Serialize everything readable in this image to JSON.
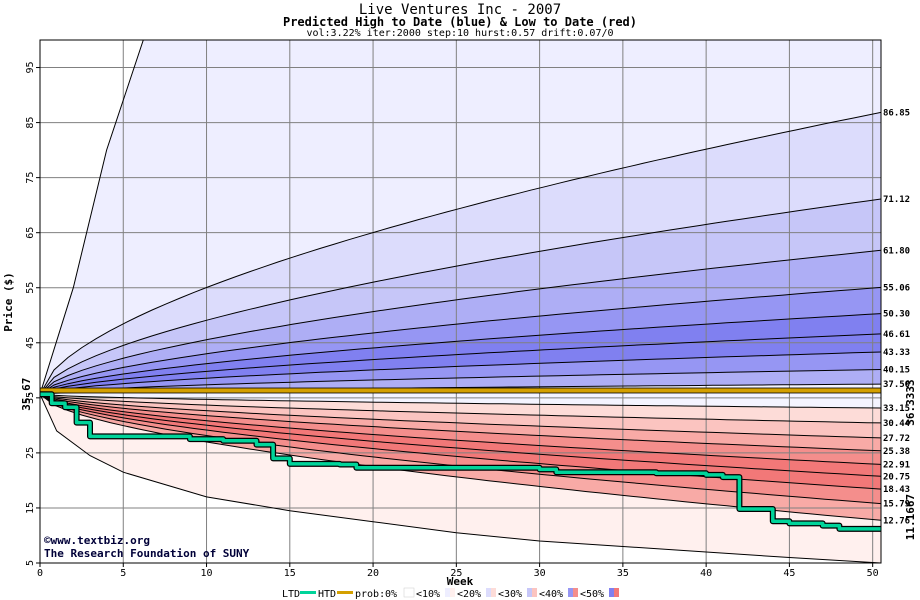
{
  "header": {
    "title": "Live Ventures Inc - 2007",
    "subtitle": "Predicted High to Date (blue) &  Low to Date (red)",
    "params": "vol:3.22% iter:2000 step:10 hurst:0.57 drift:0.07/0"
  },
  "credit": {
    "line1": "©www.textbiz.org",
    "line2": "The Research Foundation of SUNY"
  },
  "legend": {
    "ltd": "LTD",
    "htd": "HTD",
    "prob": "prob:",
    "p0": "0%",
    "p10": "<10%",
    "p20": "<20%",
    "p30": "<30%",
    "p40": "<40%",
    "p50": "<50%"
  },
  "colors": {
    "blue_bands": [
      "#eeeeff",
      "#dcdcfc",
      "#c6c6f8",
      "#aeaef5",
      "#9696f3",
      "#8080f0"
    ],
    "red_bands": [
      "#fff0ee",
      "#fddcd8",
      "#fbc4c0",
      "#f8aaa6",
      "#f48e8c",
      "#f27878"
    ],
    "htd_line": "#00d49a",
    "current_line": "#d4a000",
    "start_label": "#006400",
    "current_label": "#8a6a00",
    "last_label": "#008060"
  },
  "chart_data": {
    "type": "area",
    "title": "Live Ventures Inc - 2007",
    "subtitle": "Predicted High to Date (blue) &  Low to Date (red)",
    "xlabel": "Week",
    "ylabel": "Price ($)",
    "xlim": [
      0,
      50.5
    ],
    "ylim": [
      5,
      100
    ],
    "xticks": [
      0,
      5,
      10,
      15,
      20,
      25,
      30,
      35,
      40,
      45,
      50
    ],
    "yticks": [
      5,
      15,
      25,
      35,
      45,
      55,
      65,
      75,
      85,
      95
    ],
    "grid": true,
    "start_price": 35.67,
    "start_label": "35.67",
    "current_price": 36.3333,
    "current_label": "36.3333",
    "last_price": 11.1667,
    "last_label": "11.1667",
    "upper_percentile_curves": [
      {
        "end": 86.85,
        "label": "86.85",
        "exp": 0.6
      },
      {
        "end": 71.12,
        "label": "71.12",
        "exp": 0.6
      },
      {
        "end": 61.8,
        "label": "61.80",
        "exp": 0.6
      },
      {
        "end": 55.06,
        "label": "55.06",
        "exp": 0.6
      },
      {
        "end": 50.3,
        "label": "50.30",
        "exp": 0.6
      },
      {
        "end": 46.61,
        "label": "46.61",
        "exp": 0.6
      },
      {
        "end": 43.33,
        "label": "43.33",
        "exp": 0.6
      },
      {
        "end": 40.15,
        "label": "40.15",
        "exp": 0.6
      },
      {
        "end": 37.5,
        "label": "37.50",
        "exp": 0.6
      }
    ],
    "lower_percentile_curves": [
      {
        "end": 33.15,
        "label": "33.15",
        "exp": 0.6
      },
      {
        "end": 30.44,
        "label": "30.44",
        "exp": 0.6
      },
      {
        "end": 27.72,
        "label": "27.72",
        "exp": 0.6
      },
      {
        "end": 25.38,
        "label": "25.38",
        "exp": 0.6
      },
      {
        "end": 22.91,
        "label": "22.91",
        "exp": 0.6
      },
      {
        "end": 20.75,
        "label": "20.75",
        "exp": 0.6
      },
      {
        "end": 18.43,
        "label": "18.43",
        "exp": 0.6
      },
      {
        "end": 15.79,
        "label": "15.79",
        "exp": 0.6
      },
      {
        "end": 12.76,
        "label": "12.76",
        "exp": 0.6
      }
    ],
    "outer_envelope": {
      "upper": [
        [
          0,
          35.67
        ],
        [
          2,
          55
        ],
        [
          4,
          80
        ],
        [
          6.2,
          100
        ]
      ],
      "lower": [
        [
          0,
          35.67
        ],
        [
          1,
          29
        ],
        [
          3,
          24.5
        ],
        [
          5,
          21.5
        ],
        [
          10,
          17
        ],
        [
          15,
          14.5
        ],
        [
          20,
          12.5
        ],
        [
          25,
          10.5
        ],
        [
          30,
          9
        ],
        [
          35,
          8
        ],
        [
          40,
          7
        ],
        [
          45,
          6
        ],
        [
          50.5,
          5
        ]
      ]
    },
    "band_fills": {
      "upper": [
        [
          0,
          7
        ],
        [
          1,
          5
        ],
        [
          2,
          4
        ],
        [
          3,
          3
        ],
        [
          5,
          2
        ],
        [
          7,
          1
        ]
      ],
      "lower": [
        [
          0,
          7
        ],
        [
          1,
          5
        ],
        [
          2,
          4
        ],
        [
          3,
          3
        ],
        [
          5,
          2
        ],
        [
          7,
          1
        ]
      ]
    },
    "htd_series": {
      "name": "HTD",
      "points": [
        [
          0,
          35.67
        ],
        [
          0.7,
          34
        ],
        [
          1.5,
          33.3
        ],
        [
          2.2,
          30.5
        ],
        [
          3,
          28
        ],
        [
          5,
          28
        ],
        [
          8.5,
          28
        ],
        [
          9,
          27.5
        ],
        [
          11,
          27.2
        ],
        [
          13,
          26.5
        ],
        [
          14,
          24
        ],
        [
          15,
          23
        ],
        [
          18,
          22.9
        ],
        [
          19,
          22.3
        ],
        [
          30,
          22
        ],
        [
          31,
          21.5
        ],
        [
          37,
          21.3
        ],
        [
          40,
          21
        ],
        [
          41,
          20.6
        ],
        [
          42,
          14.8
        ],
        [
          43,
          14.8
        ],
        [
          44,
          12.6
        ],
        [
          45,
          12.2
        ],
        [
          47,
          11.8
        ],
        [
          48,
          11.2
        ],
        [
          50.5,
          11.17
        ]
      ]
    }
  }
}
